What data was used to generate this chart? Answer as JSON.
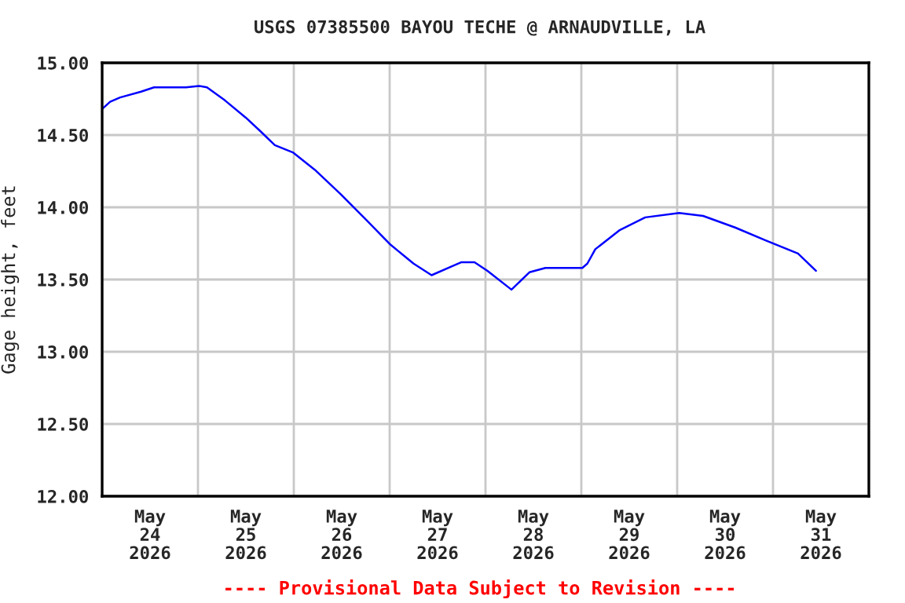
{
  "chart_data": {
    "type": "line",
    "title": "USGS 07385500 BAYOU TECHE @ ARNAUDVILLE, LA",
    "ylabel": "Gage height, feet",
    "annotations": [
      "---- Provisional Data Subject to Revision ----"
    ],
    "x": [
      "2026-05-24T00:00",
      "2026-05-24T02:00",
      "2026-05-24T04:30",
      "2026-05-24T09:45",
      "2026-05-24T13:00",
      "2026-05-24T21:00",
      "2026-05-25T00:15",
      "2026-05-25T02:15",
      "2026-05-25T06:45",
      "2026-05-25T12:00",
      "2026-05-25T15:30",
      "2026-05-25T19:15",
      "2026-05-25T23:45",
      "2026-05-26T05:15",
      "2026-05-26T11:45",
      "2026-05-26T18:15",
      "2026-05-27T00:15",
      "2026-05-27T06:00",
      "2026-05-27T10:30",
      "2026-05-27T15:30",
      "2026-05-27T18:00",
      "2026-05-27T21:15",
      "2026-05-28T00:30",
      "2026-05-28T06:30",
      "2026-05-28T11:00",
      "2026-05-28T15:00",
      "2026-05-29T00:15",
      "2026-05-29T01:30",
      "2026-05-29T03:30",
      "2026-05-29T09:30",
      "2026-05-29T16:00",
      "2026-05-30T00:30",
      "2026-05-30T06:30",
      "2026-05-30T14:30",
      "2026-05-30T22:15",
      "2026-05-31T06:15",
      "2026-05-31T10:45"
    ],
    "series": [
      {
        "color": "#0000ff",
        "values": [
          14.68,
          14.73,
          14.76,
          14.8,
          14.83,
          14.83,
          14.84,
          14.83,
          14.74,
          14.62,
          14.53,
          14.43,
          14.38,
          14.26,
          14.09,
          13.91,
          13.74,
          13.61,
          13.53,
          13.59,
          13.62,
          13.62,
          13.56,
          13.43,
          13.55,
          13.58,
          13.58,
          13.61,
          13.71,
          13.84,
          13.93,
          13.96,
          13.94,
          13.86,
          13.77,
          13.68,
          13.56
        ]
      }
    ],
    "xlim": [
      "2026-05-24T00:00",
      "2026-06-01T00:00"
    ],
    "xticks": [
      {
        "value": "2026-05-24T00:00",
        "label": null
      },
      {
        "value": "2026-05-25T00:00",
        "label": null
      },
      {
        "value": "2026-05-26T00:00",
        "label": null
      },
      {
        "value": "2026-05-27T00:00",
        "label": null
      },
      {
        "value": "2026-05-28T00:00",
        "label": null
      },
      {
        "value": "2026-05-29T00:00",
        "label": null
      },
      {
        "value": "2026-05-30T00:00",
        "label": null
      },
      {
        "value": "2026-05-31T00:00",
        "label": null
      },
      {
        "value": "2026-06-01T00:00",
        "label": null
      },
      {
        "value": "2026-05-24T12:00",
        "label": "May\n24\n2026"
      },
      {
        "value": "2026-05-25T12:00",
        "label": "May\n25\n2026"
      },
      {
        "value": "2026-05-26T12:00",
        "label": "May\n26\n2026"
      },
      {
        "value": "2026-05-27T12:00",
        "label": "May\n27\n2026"
      },
      {
        "value": "2026-05-28T12:00",
        "label": "May\n28\n2026"
      },
      {
        "value": "2026-05-29T12:00",
        "label": "May\n29\n2026"
      },
      {
        "value": "2026-05-30T12:00",
        "label": "May\n30\n2026"
      },
      {
        "value": "2026-05-31T12:00",
        "label": "May\n31\n2026"
      }
    ],
    "ylim": [
      12,
      15
    ],
    "yticks": [
      {
        "value": 12,
        "label": "12.00"
      },
      {
        "value": 12.5,
        "label": "12.50"
      },
      {
        "value": 13,
        "label": "13.00"
      },
      {
        "value": 13.5,
        "label": "13.50"
      },
      {
        "value": 14,
        "label": "14.00"
      },
      {
        "value": 14.5,
        "label": "14.50"
      },
      {
        "value": 15,
        "label": "15.00"
      }
    ],
    "grid": true,
    "legend": false,
    "marker": "none",
    "line_style": "solid"
  }
}
